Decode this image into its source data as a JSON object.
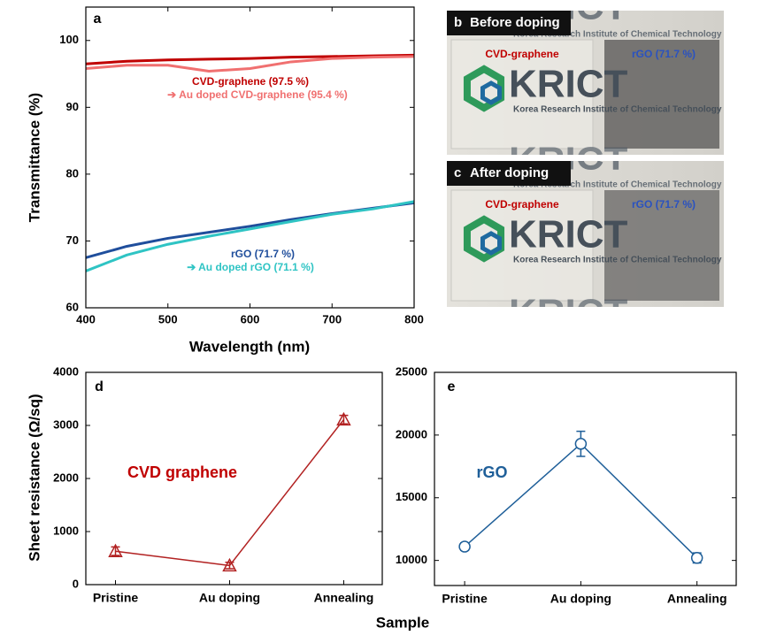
{
  "chart_data": [
    {
      "type": "line",
      "label": "a",
      "xlabel": "Wavelength (nm)",
      "ylabel": "Transmittance (%)",
      "x": [
        400,
        450,
        500,
        550,
        600,
        650,
        700,
        750,
        800
      ],
      "series": [
        {
          "name": "CVD-graphene",
          "color": "#c00000",
          "values": [
            96.5,
            96.9,
            97.1,
            97.2,
            97.3,
            97.5,
            97.6,
            97.7,
            97.8
          ]
        },
        {
          "name": "Au doped CVD-graphene",
          "color": "#f07070",
          "values": [
            95.8,
            96.3,
            96.3,
            95.4,
            95.8,
            96.8,
            97.3,
            97.5,
            97.6
          ]
        },
        {
          "name": "rGO",
          "color": "#1f4e9c",
          "values": [
            67.5,
            69.2,
            70.4,
            71.3,
            72.2,
            73.2,
            74.1,
            74.9,
            75.7
          ]
        },
        {
          "name": "Au doped rGO",
          "color": "#2fc4c4",
          "values": [
            65.5,
            67.9,
            69.5,
            70.7,
            71.8,
            72.9,
            74.0,
            74.8,
            75.9
          ]
        }
      ],
      "annotations": [
        {
          "text": "CVD-graphene (97.5 %)",
          "color": "#c00000"
        },
        {
          "text": "➔ Au doped CVD-graphene (95.4 %)",
          "color": "#f07070"
        },
        {
          "text": "rGO (71.7 %)",
          "color": "#1f4e9c"
        },
        {
          "text": "➔ Au doped rGO (71.1 %)",
          "color": "#2fc4c4"
        }
      ],
      "xlim": [
        400,
        800
      ],
      "xticks": [
        400,
        500,
        600,
        700,
        800
      ],
      "ylim": [
        60,
        105
      ],
      "yticks": [
        60,
        70,
        80,
        90,
        100
      ]
    },
    {
      "type": "line",
      "label": "d",
      "ylabel": "Sheet resistance (Ω/sq)",
      "xlabel": "Sample",
      "categories": [
        "Pristine",
        "Au doping",
        "Annealing"
      ],
      "series": [
        {
          "name": "CVD graphene",
          "color": "#b22222",
          "marker": "triangle",
          "values": [
            630,
            360,
            3110
          ],
          "errors": [
            80,
            60,
            80
          ]
        }
      ],
      "annotations": [
        {
          "text": "CVD graphene",
          "color": "#c00000"
        }
      ],
      "ylim": [
        0,
        4000
      ],
      "yticks": [
        0,
        1000,
        2000,
        3000,
        4000
      ]
    },
    {
      "type": "line",
      "label": "e",
      "categories": [
        "Pristine",
        "Au doping",
        "Annealing"
      ],
      "series": [
        {
          "name": "rGO",
          "color": "#1f5f99",
          "marker": "circle",
          "values": [
            11100,
            19300,
            10200
          ],
          "errors": [
            300,
            1000,
            400
          ]
        }
      ],
      "annotations": [
        {
          "text": "rGO",
          "color": "#1f5f99"
        }
      ],
      "ylim": [
        8000,
        25000
      ],
      "yticks": [
        10000,
        15000,
        20000,
        25000
      ]
    }
  ],
  "photos": [
    {
      "label": "b",
      "title": "Before doping",
      "left_text": "CVD-graphene",
      "right_text": "rGO (71.7 %)",
      "logo": "KRICT",
      "logo_subtitle": "Korea Research Institute of Chemical Technology"
    },
    {
      "label": "c",
      "title": "After doping",
      "left_text": "CVD-graphene",
      "right_text": "rGO (71.7 %)",
      "logo": "KRICT",
      "logo_subtitle": "Korea Research Institute of Chemical Technology"
    }
  ]
}
